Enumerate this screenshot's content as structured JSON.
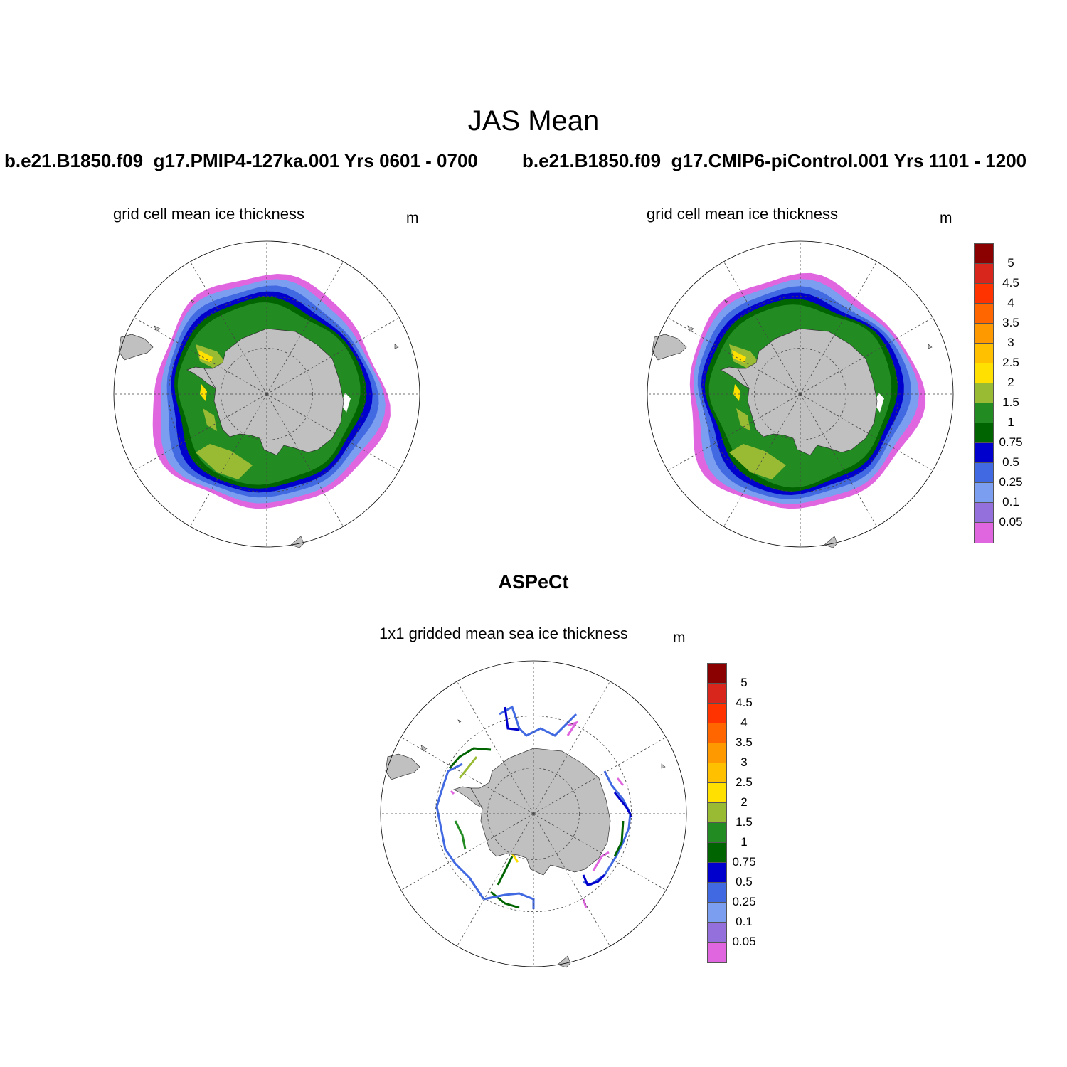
{
  "main_title": "JAS Mean",
  "panels": [
    {
      "run_title": "b.e21.B1850.f09_g17.PMIP4-127ka.001  Yrs 0601 - 0700",
      "subtitle": "grid cell mean ice thickness",
      "units": "m"
    },
    {
      "run_title": "b.e21.B1850.f09_g17.CMIP6-piControl.001  Yrs 1101 - 1200",
      "subtitle": "grid cell mean ice thickness",
      "units": "m"
    },
    {
      "run_title": "ASPeCt",
      "subtitle": "1x1 gridded mean sea ice thickness",
      "units": "m"
    }
  ],
  "colorbar": {
    "labels": [
      "5",
      "4.5",
      "4",
      "3.5",
      "3",
      "2.5",
      "2",
      "1.5",
      "1",
      "0.75",
      "0.5",
      "0.25",
      "0.1",
      "0.05"
    ],
    "colors": [
      "#8b0000",
      "#d9261c",
      "#ff3300",
      "#ff6600",
      "#ff9900",
      "#ffc000",
      "#ffe000",
      "#99bb33",
      "#228b22",
      "#006400",
      "#0000cc",
      "#4169e1",
      "#7b9ef0",
      "#9370db",
      "#e066e0"
    ]
  },
  "map_colors": {
    "land": "#c0c0c0",
    "ice_pink": "#e066e0",
    "ice_lightblue": "#7b9ef0",
    "ice_blue": "#4169e1",
    "ice_darkblue": "#0000cc",
    "ice_darkgreen": "#006400",
    "ice_green": "#228b22",
    "ice_olive": "#99bb33",
    "ice_yellow": "#ffe000",
    "ice_orange": "#ffc000"
  }
}
